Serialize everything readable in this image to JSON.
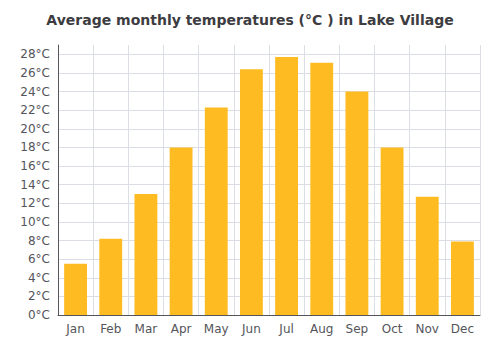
{
  "chart_data": {
    "type": "bar",
    "title": "Average monthly temperatures (°C ) in Lake Village",
    "categories": [
      "Jan",
      "Feb",
      "Mar",
      "Apr",
      "May",
      "Jun",
      "Jul",
      "Aug",
      "Sep",
      "Oct",
      "Nov",
      "Dec"
    ],
    "values": [
      5.5,
      8.2,
      13.0,
      18.0,
      22.3,
      26.4,
      27.7,
      27.1,
      24.0,
      18.0,
      12.7,
      7.9
    ],
    "color": "#FFBB22",
    "ylim": [
      0,
      29
    ],
    "yticks": [
      {
        "value": 0,
        "label": "0°C"
      },
      {
        "value": 2,
        "label": "2°C"
      },
      {
        "value": 4,
        "label": "4°C"
      },
      {
        "value": 6,
        "label": "6°C"
      },
      {
        "value": 8,
        "label": "8°C"
      },
      {
        "value": 10,
        "label": "10°C"
      },
      {
        "value": 12,
        "label": "12°C"
      },
      {
        "value": 14,
        "label": "14°C"
      },
      {
        "value": 16,
        "label": "16°C"
      },
      {
        "value": 18,
        "label": "18°C"
      },
      {
        "value": 20,
        "label": "20°C"
      },
      {
        "value": 22,
        "label": "22°C"
      },
      {
        "value": 24,
        "label": "24°C"
      },
      {
        "value": 26,
        "label": "26°C"
      },
      {
        "value": 28,
        "label": "28°C"
      }
    ],
    "grid": true
  }
}
